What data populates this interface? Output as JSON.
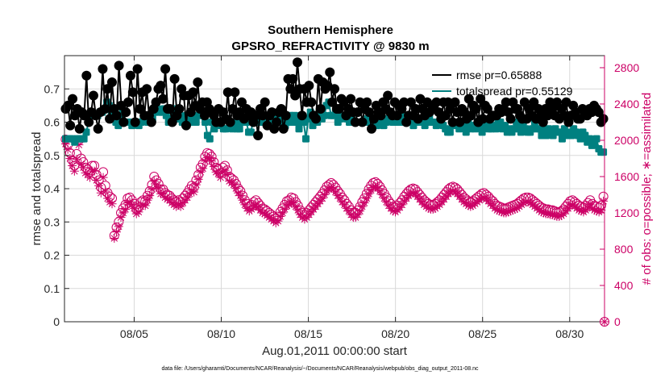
{
  "chart_data": {
    "type": "line",
    "title": "Southern Hemisphere",
    "subtitle": "GPSRO_REFRACTIVITY @ 9830 m",
    "xlabel": "Aug.01,2011 00:00:00 start",
    "ylabel": "rmse and totalspread",
    "ylabel_right": "# of obs: o=possible; ∗=assimilated",
    "footnote": "data file: /Users/gharamti/Documents/NCAR/Reanalysis/~/Documents/NCAR/Reanalysis/webpub/obs_diag_output_2011-08.nc",
    "xlim": [
      1,
      32
    ],
    "ylim": [
      0,
      0.8
    ],
    "ylim_right": [
      0,
      2933
    ],
    "x_ticks": [
      5,
      10,
      15,
      20,
      25,
      30
    ],
    "x_tick_labels": [
      "08/05",
      "08/10",
      "08/15",
      "08/20",
      "08/25",
      "08/30"
    ],
    "y_ticks": [
      0,
      0.1,
      0.2,
      0.3,
      0.4,
      0.5,
      0.6,
      0.7
    ],
    "y_tick_labels": [
      "0",
      "0.1",
      "0.2",
      "0.3",
      "0.4",
      "0.5",
      "0.6",
      "0.7"
    ],
    "y_ticks_right": [
      0,
      400,
      800,
      1200,
      1600,
      2000,
      2400,
      2800
    ],
    "y_tick_labels_right": [
      "0",
      "400",
      "800",
      "1200",
      "1600",
      "2000",
      "2400",
      "2800"
    ],
    "grid": true,
    "legend_position": "top-right",
    "legend": [
      {
        "label": "rmse pr=0.65888",
        "color": "#000000"
      },
      {
        "label": "totalspread pr=0.55129",
        "color": "#008080"
      }
    ],
    "series": [
      {
        "name": "rmse",
        "axis": "left",
        "color": "#000000",
        "marker": "filled-circle",
        "values": [
          0.64,
          0.65,
          0.59,
          0.67,
          0.62,
          0.64,
          0.58,
          0.63,
          0.62,
          0.74,
          0.6,
          0.63,
          0.68,
          0.62,
          0.58,
          0.63,
          0.76,
          0.64,
          0.7,
          0.61,
          0.72,
          0.64,
          0.62,
          0.77,
          0.65,
          0.6,
          0.63,
          0.66,
          0.74,
          0.69,
          0.6,
          0.76,
          0.64,
          0.69,
          0.62,
          0.7,
          0.62,
          0.6,
          0.64,
          0.66,
          0.7,
          0.71,
          0.67,
          0.76,
          0.64,
          0.64,
          0.6,
          0.73,
          0.62,
          0.64,
          0.7,
          0.68,
          0.59,
          0.68,
          0.63,
          0.69,
          0.65,
          0.72,
          0.64,
          0.66,
          0.62,
          0.66,
          0.64,
          0.63,
          0.62,
          0.6,
          0.64,
          0.6,
          0.63,
          0.61,
          0.69,
          0.6,
          0.64,
          0.69,
          0.62,
          0.63,
          0.66,
          0.61,
          0.64,
          0.62,
          0.63,
          0.6,
          0.62,
          0.56,
          0.64,
          0.62,
          0.66,
          0.59,
          0.62,
          0.63,
          0.58,
          0.6,
          0.63,
          0.64,
          0.58,
          0.62,
          0.73,
          0.7,
          0.73,
          0.68,
          0.78,
          0.7,
          0.62,
          0.7,
          0.66,
          0.71,
          0.66,
          0.62,
          0.61,
          0.73,
          0.64,
          0.72,
          0.7,
          0.71,
          0.75,
          0.66,
          0.7,
          0.64,
          0.64,
          0.67,
          0.66,
          0.62,
          0.64,
          0.67,
          0.63,
          0.6,
          0.63,
          0.66,
          0.6,
          0.64,
          0.66,
          0.63,
          0.58,
          0.61,
          0.65,
          0.63,
          0.62,
          0.66,
          0.64,
          0.68,
          0.63,
          0.62,
          0.66,
          0.62,
          0.65,
          0.64,
          0.66,
          0.6,
          0.62,
          0.66,
          0.62,
          0.64,
          0.61,
          0.67,
          0.64,
          0.62,
          0.66,
          0.63,
          0.65,
          0.64,
          0.66,
          0.63,
          0.61,
          0.66,
          0.62,
          0.66,
          0.64,
          0.6,
          0.66,
          0.63,
          0.6,
          0.64,
          0.63,
          0.61,
          0.67,
          0.62,
          0.65,
          0.64,
          0.6,
          0.67,
          0.61,
          0.65,
          0.64,
          0.61,
          0.62,
          0.62,
          0.62,
          0.64,
          0.63,
          0.64,
          0.66,
          0.63,
          0.61,
          0.66,
          0.64,
          0.64,
          0.62,
          0.61,
          0.66,
          0.61,
          0.64,
          0.62,
          0.66,
          0.61,
          0.64,
          0.62,
          0.6,
          0.64,
          0.62,
          0.66,
          0.64,
          0.62,
          0.66,
          0.61,
          0.64,
          0.62,
          0.66,
          0.6,
          0.62,
          0.65,
          0.63,
          0.61,
          0.61,
          0.64,
          0.63,
          0.62,
          0.64,
          0.63,
          0.65,
          0.64,
          0.63,
          0.6,
          0.61
        ]
      },
      {
        "name": "totalspread",
        "axis": "left",
        "color": "#008080",
        "marker": "filled-square",
        "values": [
          0.55,
          0.55,
          0.55,
          0.55,
          0.54,
          0.55,
          0.55,
          0.55,
          0.55,
          0.57,
          0.6,
          0.63,
          0.62,
          0.62,
          0.62,
          0.63,
          0.63,
          0.64,
          0.66,
          0.65,
          0.63,
          0.62,
          0.6,
          0.59,
          0.62,
          0.63,
          0.6,
          0.6,
          0.6,
          0.59,
          0.6,
          0.6,
          0.59,
          0.6,
          0.62,
          0.61,
          0.6,
          0.61,
          0.61,
          0.63,
          0.64,
          0.63,
          0.63,
          0.64,
          0.62,
          0.6,
          0.61,
          0.64,
          0.62,
          0.61,
          0.62,
          0.6,
          0.6,
          0.62,
          0.61,
          0.62,
          0.6,
          0.6,
          0.62,
          0.64,
          0.62,
          0.6,
          0.56,
          0.55,
          0.6,
          0.58,
          0.6,
          0.6,
          0.59,
          0.58,
          0.58,
          0.61,
          0.6,
          0.58,
          0.6,
          0.58,
          0.58,
          0.6,
          0.6,
          0.6,
          0.57,
          0.57,
          0.61,
          0.6,
          0.61,
          0.6,
          0.6,
          0.6,
          0.62,
          0.61,
          0.6,
          0.6,
          0.62,
          0.6,
          0.61,
          0.6,
          0.59,
          0.6,
          0.62,
          0.6,
          0.62,
          0.6,
          0.58,
          0.62,
          0.6,
          0.55,
          0.61,
          0.63,
          0.59,
          0.61,
          0.6,
          0.62,
          0.61,
          0.62,
          0.65,
          0.66,
          0.62,
          0.62,
          0.63,
          0.6,
          0.61,
          0.62,
          0.62,
          0.61,
          0.6,
          0.62,
          0.6,
          0.6,
          0.6,
          0.6,
          0.6,
          0.6,
          0.61,
          0.6,
          0.6,
          0.6,
          0.59,
          0.6,
          0.6,
          0.59,
          0.6,
          0.61,
          0.62,
          0.6,
          0.61,
          0.6,
          0.6,
          0.62,
          0.6,
          0.61,
          0.61,
          0.6,
          0.59,
          0.6,
          0.6,
          0.6,
          0.6,
          0.59,
          0.6,
          0.61,
          0.6,
          0.6,
          0.59,
          0.6,
          0.6,
          0.59,
          0.58,
          0.57,
          0.57,
          0.59,
          0.6,
          0.59,
          0.58,
          0.6,
          0.59,
          0.57,
          0.6,
          0.58,
          0.59,
          0.58,
          0.6,
          0.59,
          0.57,
          0.59,
          0.6,
          0.58,
          0.58,
          0.59,
          0.58,
          0.6,
          0.6,
          0.58,
          0.59,
          0.57,
          0.58,
          0.57,
          0.58,
          0.6,
          0.58,
          0.57,
          0.6,
          0.58,
          0.57,
          0.57,
          0.58,
          0.6,
          0.58,
          0.58,
          0.56,
          0.58,
          0.56,
          0.58,
          0.57,
          0.56,
          0.58,
          0.57,
          0.57,
          0.55,
          0.58,
          0.56,
          0.57,
          0.56,
          0.58,
          0.57,
          0.56,
          0.55,
          0.57,
          0.56,
          0.54,
          0.55,
          0.53,
          0.54,
          0.55,
          0.52,
          0.51,
          0.51
        ]
      },
      {
        "name": "possible",
        "axis": "right",
        "color": "#cc0066",
        "marker": "open-circle",
        "values": [
          2010,
          1950,
          1860,
          1780,
          1720,
          1850,
          2000,
          1800,
          1760,
          1700,
          1680,
          1650,
          1720,
          1720,
          1620,
          1560,
          1480,
          1650,
          1500,
          1420,
          1380,
          1360,
          950,
          1040,
          1100,
          1200,
          1250,
          1290,
          1360,
          1370,
          1340,
          1300,
          1240,
          1260,
          1320,
          1340,
          1330,
          1390,
          1440,
          1510,
          1600,
          1560,
          1520,
          1460,
          1460,
          1420,
          1400,
          1390,
          1360,
          1340,
          1320,
          1340,
          1320,
          1360,
          1390,
          1420,
          1460,
          1500,
          1480,
          1560,
          1620,
          1700,
          1740,
          1820,
          1860,
          1850,
          1820,
          1760,
          1700,
          1680,
          1640,
          1700,
          1720,
          1670,
          1600,
          1580,
          1560,
          1520,
          1470,
          1440,
          1390,
          1340,
          1300,
          1270,
          1290,
          1320,
          1340,
          1310,
          1280,
          1250,
          1240,
          1220,
          1200,
          1180,
          1160,
          1140,
          1160,
          1210,
          1250,
          1290,
          1330,
          1340,
          1370,
          1360,
          1320,
          1280,
          1230,
          1200,
          1180,
          1200,
          1230,
          1260,
          1290,
          1320,
          1350,
          1380,
          1410,
          1450,
          1490,
          1510,
          1530,
          1510,
          1480,
          1440,
          1410,
          1370,
          1340,
          1300,
          1270,
          1230,
          1200,
          1200,
          1230,
          1270,
          1320,
          1360,
          1410,
          1460,
          1500,
          1530,
          1540,
          1520,
          1490,
          1450,
          1410,
          1370,
          1330,
          1300,
          1270,
          1260,
          1280,
          1310,
          1340,
          1380,
          1410,
          1440,
          1460,
          1470,
          1460,
          1430,
          1400,
          1370,
          1340,
          1320,
          1300,
          1290,
          1290,
          1300,
          1320,
          1340,
          1370,
          1400,
          1430,
          1460,
          1480,
          1490,
          1480,
          1460,
          1430,
          1400,
          1370,
          1350,
          1330,
          1320,
          1330,
          1350,
          1370,
          1390,
          1410,
          1420,
          1400,
          1380,
          1350,
          1330,
          1300,
          1280,
          1270,
          1260,
          1250,
          1250,
          1260,
          1270,
          1280,
          1290,
          1300,
          1320,
          1340,
          1360,
          1370,
          1370,
          1360,
          1340,
          1320,
          1300,
          1280,
          1260,
          1250,
          1240,
          1240,
          1230,
          1230,
          1220,
          1210,
          1210,
          1220,
          1240,
          1270,
          1300,
          1330,
          1340,
          1320,
          1300,
          1280,
          1270,
          1260,
          1280,
          1310,
          1340,
          1300,
          1280,
          1270,
          1260,
          1280,
          1380
        ]
      },
      {
        "name": "assimilated",
        "axis": "right",
        "color": "#cc0066",
        "marker": "asterisk",
        "values": [
          1960,
          1900,
          1800,
          1720,
          1660,
          1790,
          1950,
          1740,
          1700,
          1640,
          1620,
          1590,
          1660,
          1660,
          1560,
          1500,
          1420,
          1590,
          1440,
          1360,
          1320,
          1300,
          920,
          990,
          1050,
          1150,
          1200,
          1240,
          1310,
          1320,
          1290,
          1250,
          1190,
          1210,
          1270,
          1290,
          1280,
          1340,
          1390,
          1460,
          1550,
          1510,
          1470,
          1410,
          1410,
          1370,
          1350,
          1340,
          1310,
          1290,
          1270,
          1290,
          1270,
          1310,
          1340,
          1370,
          1410,
          1450,
          1430,
          1510,
          1570,
          1650,
          1690,
          1770,
          1810,
          1800,
          1770,
          1710,
          1650,
          1630,
          1590,
          1650,
          1670,
          1620,
          1550,
          1530,
          1510,
          1470,
          1420,
          1390,
          1340,
          1290,
          1250,
          1220,
          1240,
          1270,
          1290,
          1260,
          1230,
          1200,
          1190,
          1170,
          1150,
          1130,
          1110,
          1090,
          1110,
          1160,
          1200,
          1240,
          1280,
          1290,
          1320,
          1310,
          1270,
          1230,
          1180,
          1150,
          1130,
          1150,
          1180,
          1210,
          1240,
          1270,
          1300,
          1330,
          1360,
          1400,
          1440,
          1460,
          1480,
          1460,
          1430,
          1390,
          1360,
          1320,
          1290,
          1250,
          1220,
          1180,
          1150,
          1150,
          1180,
          1220,
          1270,
          1310,
          1360,
          1410,
          1450,
          1480,
          1490,
          1470,
          1440,
          1400,
          1360,
          1320,
          1280,
          1250,
          1220,
          1210,
          1230,
          1260,
          1290,
          1330,
          1360,
          1390,
          1410,
          1420,
          1410,
          1380,
          1350,
          1320,
          1290,
          1270,
          1250,
          1240,
          1240,
          1250,
          1270,
          1290,
          1320,
          1350,
          1380,
          1410,
          1430,
          1440,
          1430,
          1410,
          1380,
          1350,
          1320,
          1300,
          1280,
          1270,
          1280,
          1300,
          1320,
          1340,
          1360,
          1370,
          1350,
          1330,
          1300,
          1280,
          1250,
          1230,
          1220,
          1210,
          1200,
          1200,
          1210,
          1220,
          1230,
          1240,
          1250,
          1270,
          1290,
          1310,
          1320,
          1320,
          1310,
          1290,
          1270,
          1250,
          1230,
          1210,
          1200,
          1190,
          1190,
          1180,
          1180,
          1170,
          1160,
          1160,
          1170,
          1190,
          1220,
          1250,
          1280,
          1290,
          1270,
          1250,
          1230,
          1220,
          1210,
          1230,
          1260,
          1290,
          1250,
          1230,
          1220,
          1210,
          1230,
          1330
        ]
      }
    ]
  }
}
